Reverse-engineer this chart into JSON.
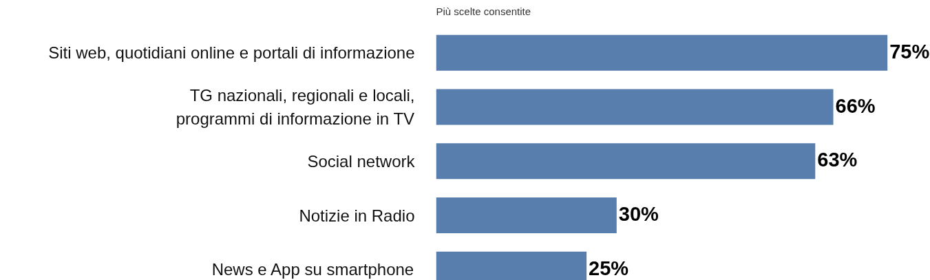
{
  "chart_data": {
    "type": "bar",
    "orientation": "horizontal",
    "subtitle": "Più scelte consentite",
    "categories": [
      "Siti web, quotidiani online e portali di informazione",
      "TG nazionali, regionali e locali,\nprogrammi di informazione in TV",
      "Social network",
      "Notizie in Radio",
      "News e App su smartphone"
    ],
    "values": [
      75,
      66,
      63,
      30,
      25
    ],
    "value_labels": [
      "75%",
      "66%",
      "63%",
      "30%",
      "25%"
    ],
    "color": "#577eac"
  }
}
